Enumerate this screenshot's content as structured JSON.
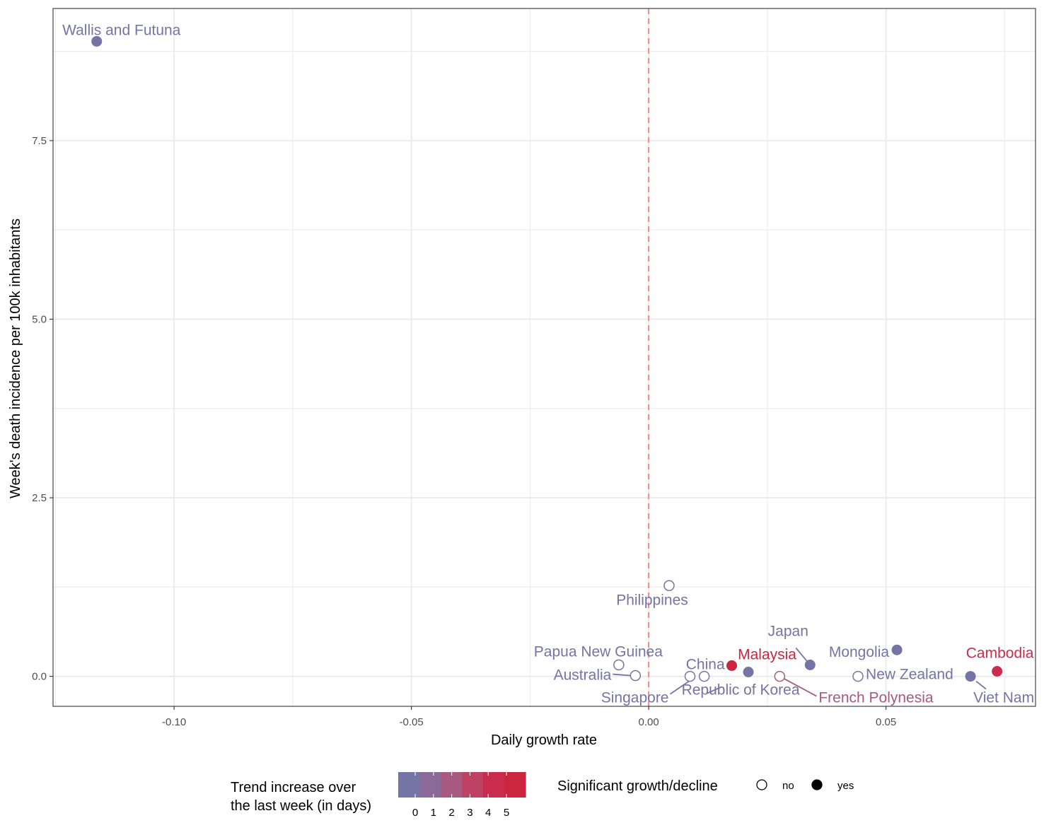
{
  "chart_data": {
    "type": "scatter",
    "xlabel": "Daily growth rate",
    "ylabel": "Week's death incidence per 100k inhabitants",
    "xlim": [
      -0.1255,
      0.0815
    ],
    "ylim": [
      -0.42,
      9.35
    ],
    "x_ticks": [
      -0.1,
      -0.05,
      0.0,
      0.05
    ],
    "x_tick_labels": [
      "-0.10",
      "-0.05",
      "0.00",
      "0.05"
    ],
    "y_ticks": [
      0.0,
      2.5,
      5.0,
      7.5
    ],
    "y_tick_labels": [
      "0.0",
      "2.5",
      "5.0",
      "7.5"
    ],
    "grid": true,
    "reference_line": {
      "x": 0.0,
      "style": "dashed",
      "color": "#f28c7c"
    },
    "points": [
      {
        "name": "Wallis and Futuna",
        "x": -0.1163,
        "y": 8.89,
        "trend": 0,
        "significant": true
      },
      {
        "name": "Philippines",
        "x": 0.0043,
        "y": 1.27,
        "trend": 0,
        "significant": false
      },
      {
        "name": "Papua New Guinea",
        "x": -0.0063,
        "y": 0.16,
        "trend": 0,
        "significant": false
      },
      {
        "name": "Australia",
        "x": -0.0028,
        "y": 0.01,
        "trend": 0,
        "significant": false
      },
      {
        "name": "Singapore",
        "x": 0.0087,
        "y": 0.0,
        "trend": 0,
        "significant": false
      },
      {
        "name": "China",
        "x": 0.0117,
        "y": 0.0,
        "trend": 0,
        "significant": false
      },
      {
        "name": "Malaysia",
        "x": 0.0175,
        "y": 0.15,
        "trend": 5,
        "significant": true
      },
      {
        "name": "Republic of Korea",
        "x": 0.021,
        "y": 0.06,
        "trend": 0,
        "significant": true
      },
      {
        "name": "French Polynesia",
        "x": 0.0276,
        "y": 0.0,
        "trend": 2,
        "significant": false
      },
      {
        "name": "Japan",
        "x": 0.034,
        "y": 0.16,
        "trend": 0,
        "significant": true
      },
      {
        "name": "New Zealand",
        "x": 0.0441,
        "y": 0.0,
        "trend": 0,
        "significant": false
      },
      {
        "name": "Mongolia",
        "x": 0.0523,
        "y": 0.37,
        "trend": 0,
        "significant": true
      },
      {
        "name": "Viet Nam",
        "x": 0.0678,
        "y": 0.0,
        "trend": 0,
        "significant": true
      },
      {
        "name": "Cambodia",
        "x": 0.0734,
        "y": 0.07,
        "trend": 4,
        "significant": true
      }
    ],
    "legend": {
      "placement": "bottom",
      "color_title": "Trend increase over\nthe last week (in days)",
      "color_title_lines": [
        "Trend increase over",
        "the last week (in days)"
      ],
      "color_ticks": [
        "0",
        "1",
        "2",
        "3",
        "4",
        "5"
      ],
      "color_scale": [
        "#7474a5",
        "#8c6a98",
        "#a8597f",
        "#bf4264",
        "#c92c4c",
        "#cc2540"
      ],
      "shape_title": "Significant growth/decline",
      "shape_entries": [
        {
          "label": "no",
          "filled": false
        },
        {
          "label": "yes",
          "filled": true
        }
      ]
    }
  }
}
